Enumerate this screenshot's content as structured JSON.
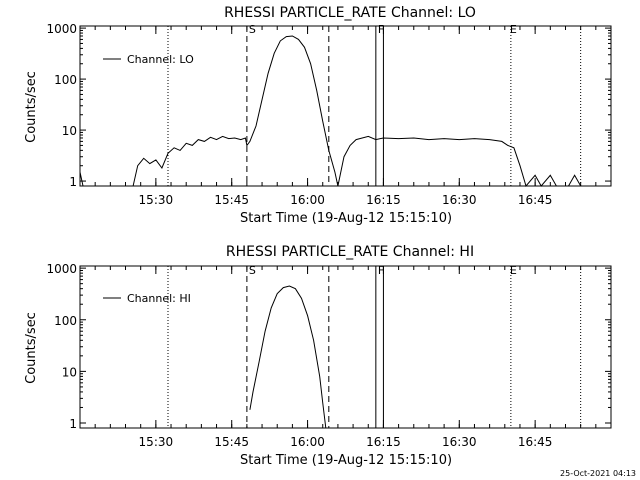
{
  "stamp": "25-Oct-2021 04:13",
  "chart_data": [
    {
      "type": "line",
      "title": "RHESSI PARTICLE_RATE Channel: LO",
      "xlabel": "Start Time (19-Aug-12 15:15:10)",
      "ylabel": "Counts/sec",
      "yscale": "log",
      "xlim": [
        15.25,
        17.0
      ],
      "ylim": [
        0.8,
        1100
      ],
      "x_ticks": [
        15.5,
        15.75,
        16.0,
        16.25,
        16.5,
        16.75
      ],
      "x_tick_labels": [
        "15:30",
        "15:45",
        "16:00",
        "16:15",
        "16:30",
        "16:45"
      ],
      "y_ticks": [
        1,
        10,
        100,
        1000
      ],
      "y_tick_labels": [
        "1",
        "10",
        "100",
        "1000"
      ],
      "legend": {
        "label": "Channel: LO",
        "position": "top-left"
      },
      "markers": [
        {
          "label": "S",
          "x": 15.8,
          "style": "dashed"
        },
        {
          "label": "F",
          "x": 16.225,
          "style": "solid"
        },
        {
          "label": "E",
          "x": 16.66,
          "style": "none"
        }
      ],
      "extra_lines": [
        {
          "x": 16.07,
          "style": "dashed"
        },
        {
          "x": 16.25,
          "style": "solid"
        },
        {
          "x": 15.54,
          "style": "dotted"
        },
        {
          "x": 16.67,
          "style": "dotted"
        },
        {
          "x": 16.9,
          "style": "dotted"
        }
      ],
      "series": [
        {
          "name": "Channel: LO",
          "points": [
            [
              15.25,
              1.5
            ],
            [
              15.26,
              0.8
            ],
            [
              15.425,
              0.8
            ],
            [
              15.44,
              2.0
            ],
            [
              15.46,
              2.8
            ],
            [
              15.48,
              2.2
            ],
            [
              15.5,
              2.6
            ],
            [
              15.52,
              1.8
            ],
            [
              15.54,
              3.5
            ],
            [
              15.56,
              4.5
            ],
            [
              15.58,
              4.0
            ],
            [
              15.6,
              5.5
            ],
            [
              15.62,
              5.0
            ],
            [
              15.64,
              6.5
            ],
            [
              15.66,
              6.0
            ],
            [
              15.68,
              7.2
            ],
            [
              15.7,
              6.5
            ],
            [
              15.72,
              7.5
            ],
            [
              15.74,
              6.8
            ],
            [
              15.76,
              7.0
            ],
            [
              15.78,
              6.5
            ],
            [
              15.795,
              7.0
            ],
            [
              15.8,
              5.0
            ],
            [
              15.81,
              6.0
            ],
            [
              15.83,
              12
            ],
            [
              15.85,
              40
            ],
            [
              15.87,
              130
            ],
            [
              15.89,
              320
            ],
            [
              15.91,
              560
            ],
            [
              15.93,
              680
            ],
            [
              15.95,
              700
            ],
            [
              15.97,
              600
            ],
            [
              15.99,
              420
            ],
            [
              16.01,
              200
            ],
            [
              16.03,
              60
            ],
            [
              16.05,
              15
            ],
            [
              16.07,
              4
            ],
            [
              16.09,
              1.5
            ],
            [
              16.1,
              0.8
            ],
            [
              16.12,
              3
            ],
            [
              16.14,
              5
            ],
            [
              16.16,
              6.5
            ],
            [
              16.18,
              7.0
            ],
            [
              16.2,
              7.5
            ],
            [
              16.225,
              6.5
            ],
            [
              16.25,
              7.0
            ],
            [
              16.3,
              6.8
            ],
            [
              16.35,
              7.0
            ],
            [
              16.4,
              6.5
            ],
            [
              16.45,
              6.8
            ],
            [
              16.5,
              6.5
            ],
            [
              16.55,
              6.8
            ],
            [
              16.6,
              6.5
            ],
            [
              16.64,
              6.0
            ],
            [
              16.66,
              5.0
            ],
            [
              16.68,
              4.5
            ],
            [
              16.7,
              2.0
            ],
            [
              16.72,
              0.8
            ],
            [
              16.75,
              1.3
            ],
            [
              16.77,
              0.8
            ],
            [
              16.8,
              1.3
            ],
            [
              16.82,
              0.8
            ],
            [
              16.86,
              0.8
            ],
            [
              16.88,
              1.3
            ],
            [
              16.9,
              0.8
            ]
          ]
        }
      ]
    },
    {
      "type": "line",
      "title": "RHESSI PARTICLE_RATE Channel: HI",
      "xlabel": "Start Time (19-Aug-12 15:15:10)",
      "ylabel": "Counts/sec",
      "yscale": "log",
      "xlim": [
        15.25,
        17.0
      ],
      "ylim": [
        0.8,
        1100
      ],
      "x_ticks": [
        15.5,
        15.75,
        16.0,
        16.25,
        16.5,
        16.75
      ],
      "x_tick_labels": [
        "15:30",
        "15:45",
        "16:00",
        "16:15",
        "16:30",
        "16:45"
      ],
      "y_ticks": [
        1,
        10,
        100,
        1000
      ],
      "y_tick_labels": [
        "1",
        "10",
        "100",
        "1000"
      ],
      "legend": {
        "label": "Channel: HI",
        "position": "top-left"
      },
      "markers": [
        {
          "label": "S",
          "x": 15.8,
          "style": "dashed"
        },
        {
          "label": "F",
          "x": 16.225,
          "style": "solid"
        },
        {
          "label": "E",
          "x": 16.66,
          "style": "none"
        }
      ],
      "extra_lines": [
        {
          "x": 16.07,
          "style": "dashed"
        },
        {
          "x": 16.25,
          "style": "solid"
        },
        {
          "x": 15.54,
          "style": "dotted"
        },
        {
          "x": 16.67,
          "style": "dotted"
        },
        {
          "x": 16.9,
          "style": "dotted"
        }
      ],
      "series": [
        {
          "name": "Channel: HI",
          "points": [
            [
              15.81,
              1.8
            ],
            [
              15.82,
              4
            ],
            [
              15.84,
              15
            ],
            [
              15.86,
              60
            ],
            [
              15.88,
              170
            ],
            [
              15.9,
              320
            ],
            [
              15.92,
              420
            ],
            [
              15.94,
              450
            ],
            [
              15.96,
              400
            ],
            [
              15.98,
              260
            ],
            [
              16.0,
              120
            ],
            [
              16.02,
              40
            ],
            [
              16.04,
              8
            ],
            [
              16.05,
              2.5
            ],
            [
              16.06,
              0.8
            ]
          ]
        }
      ]
    }
  ]
}
